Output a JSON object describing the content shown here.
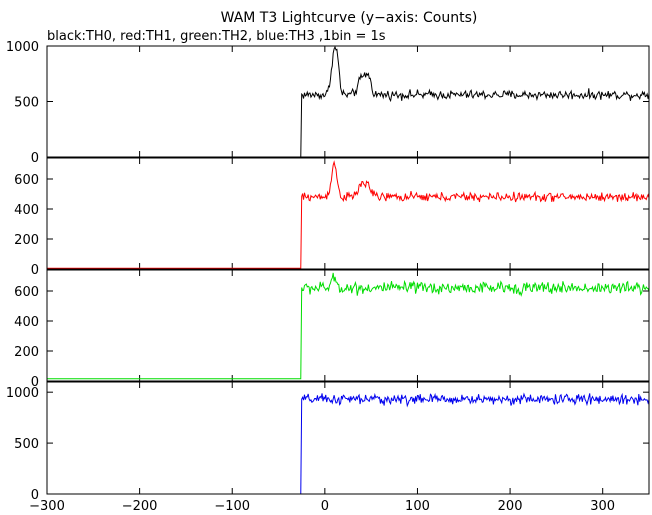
{
  "chart_data": {
    "type": "line",
    "title": "WAM T3 Lightcurve (y−axis: Counts)",
    "subtitle": "black:TH0, red:TH1, green:TH2, blue:TH3 ,1bin = 1s",
    "xlabel": "",
    "xlim": [
      -300,
      350
    ],
    "x_ticks": [
      -300,
      -200,
      -100,
      0,
      100,
      200,
      300
    ],
    "x_tick_labels": [
      "−300",
      "−200",
      "−100",
      "0",
      "100",
      "200",
      "300"
    ],
    "grid": false,
    "legend": "none",
    "panels": [
      {
        "name": "TH0",
        "color": "#000000",
        "ylabel": "",
        "ylim": [
          0,
          1000
        ],
        "y_ticks": [
          0,
          500,
          1000
        ],
        "pre_level": 0,
        "trigger_x": -25,
        "post_level": 560,
        "noise": 20,
        "peaks": [
          {
            "x": 10,
            "amp": 380,
            "width": 3
          },
          {
            "x": 14,
            "amp": 180,
            "width": 2
          },
          {
            "x": 40,
            "amp": 150,
            "width": 4
          },
          {
            "x": 47,
            "amp": 150,
            "width": 3
          }
        ]
      },
      {
        "name": "TH1",
        "color": "#ff0000",
        "ylabel": "",
        "ylim": [
          0,
          740
        ],
        "y_ticks": [
          0,
          200,
          400,
          600
        ],
        "pre_level": 5,
        "trigger_x": -25,
        "post_level": 480,
        "noise": 15,
        "peaks": [
          {
            "x": 10,
            "amp": 220,
            "width": 3
          },
          {
            "x": 40,
            "amp": 80,
            "width": 4
          },
          {
            "x": 47,
            "amp": 70,
            "width": 3
          }
        ]
      },
      {
        "name": "TH2",
        "color": "#00dd00",
        "ylabel": "",
        "ylim": [
          0,
          740
        ],
        "y_ticks": [
          0,
          200,
          400,
          600
        ],
        "pre_level": 15,
        "trigger_x": -25,
        "post_level": 620,
        "noise": 20,
        "peaks": [
          {
            "x": 10,
            "amp": 60,
            "width": 3
          }
        ]
      },
      {
        "name": "TH3",
        "color": "#0000ee",
        "ylabel": "",
        "ylim": [
          0,
          1100
        ],
        "y_ticks": [
          0,
          500,
          1000
        ],
        "pre_level": 0,
        "trigger_x": -25,
        "post_level": 930,
        "noise": 25,
        "peaks": []
      }
    ]
  }
}
